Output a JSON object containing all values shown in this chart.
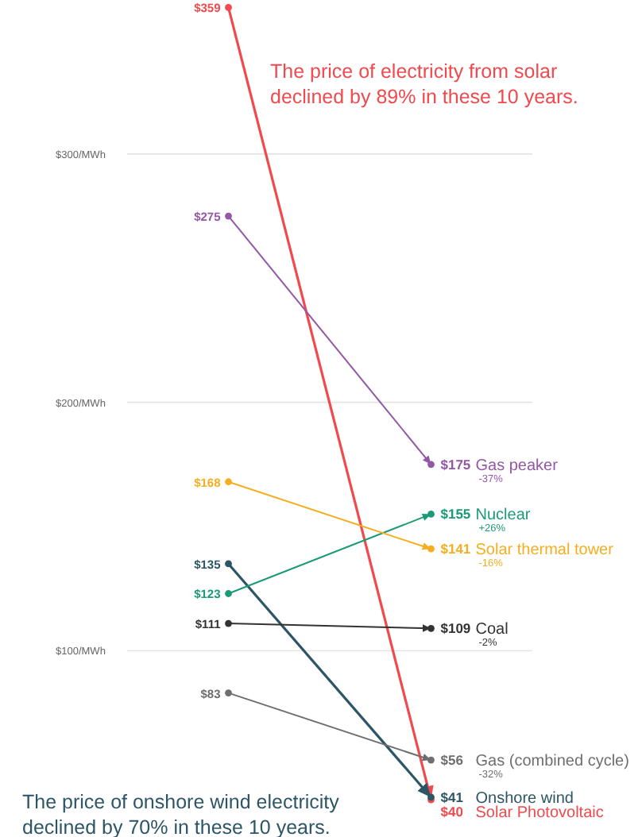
{
  "chart_data": {
    "type": "line",
    "categories": [
      null,
      null
    ],
    "ylim": [
      25,
      362
    ],
    "yticks": [
      {
        "value": 100,
        "label": "$100/MWh"
      },
      {
        "value": 200,
        "label": "$200/MWh"
      },
      {
        "value": 300,
        "label": "$300/MWh"
      }
    ],
    "grid": "y",
    "marker": "circle",
    "line_style": "solid",
    "legend": false,
    "tick_labels": "y",
    "series": [
      {
        "name": "Solar Photovoltaic",
        "color": "#f0494e",
        "values": [
          359,
          40
        ],
        "value_labels": [
          "$359",
          "$40"
        ]
      },
      {
        "name": "Onshore wind",
        "color": "#2c5566",
        "values": [
          135,
          41
        ],
        "value_labels": [
          "$135",
          "$41"
        ]
      },
      {
        "name": "Gas peaker",
        "color": "#9457a6",
        "values": [
          275,
          175
        ],
        "value_labels": [
          "$275",
          "$175"
        ]
      },
      {
        "name": "Nuclear",
        "color": "#1b9a78",
        "values": [
          123,
          155
        ],
        "value_labels": [
          "$123",
          "$155"
        ]
      },
      {
        "name": "Solar thermal tower",
        "color": "#f5ae1f",
        "values": [
          168,
          141
        ],
        "value_labels": [
          "$168",
          "$141"
        ]
      },
      {
        "name": "Coal",
        "color": "#333333",
        "values": [
          111,
          109
        ],
        "value_labels": [
          "$111",
          "$109"
        ]
      },
      {
        "name": "Gas (combined cycle)",
        "color": "#6e6e6e",
        "values": [
          83,
          56
        ],
        "value_labels": [
          "$83",
          "$56"
        ]
      }
    ],
    "annotations": [
      "The price of electricity from solar declined by 89% in these 10 years.",
      "The price of onshore wind electricity declined by 70% in these 10 years.",
      "-37%",
      "+26%",
      "-16%",
      "-2%",
      "-32%"
    ]
  }
}
